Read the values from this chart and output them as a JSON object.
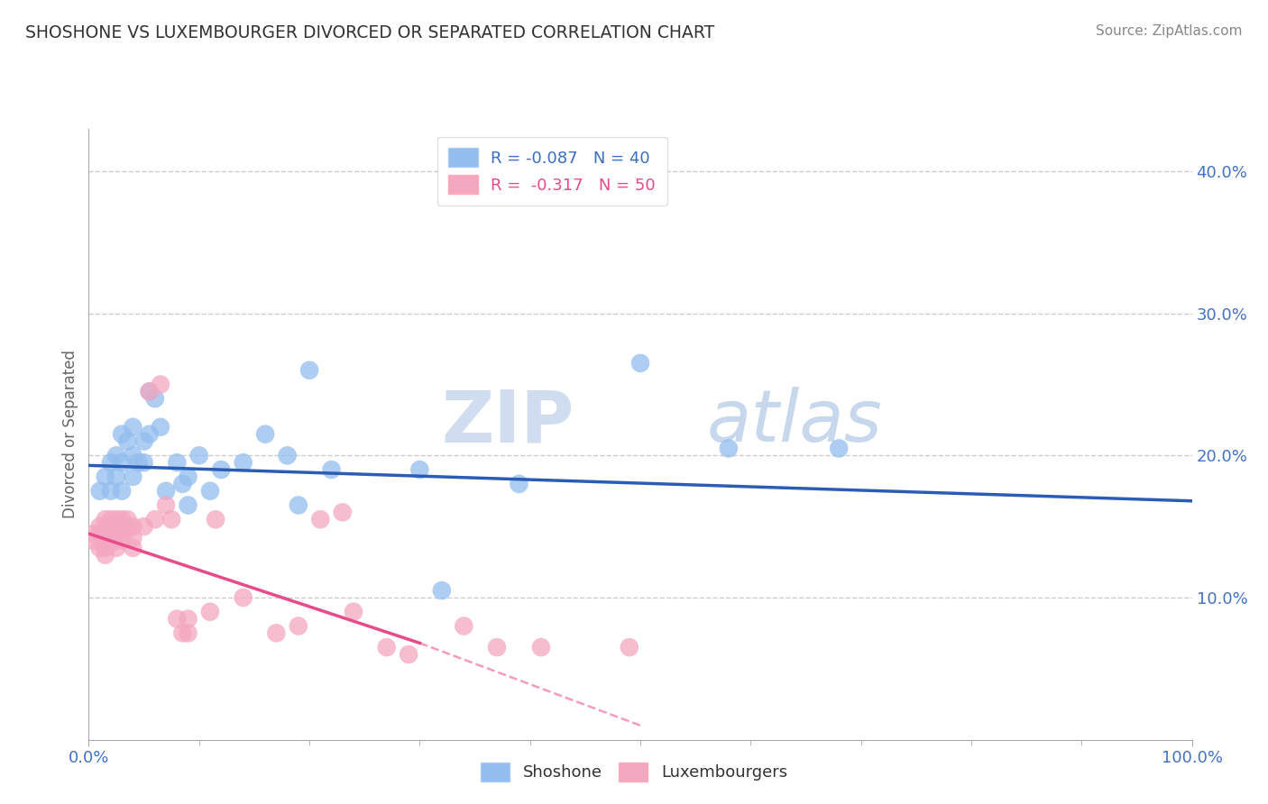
{
  "title": "SHOSHONE VS LUXEMBOURGER DIVORCED OR SEPARATED CORRELATION CHART",
  "source": "Source: ZipAtlas.com",
  "ylabel": "Divorced or Separated",
  "xlim": [
    0,
    1.0
  ],
  "ylim": [
    0,
    0.43
  ],
  "yticks": [
    0.1,
    0.2,
    0.3,
    0.4
  ],
  "ytick_labels": [
    "10.0%",
    "20.0%",
    "30.0%",
    "40.0%"
  ],
  "xticks": [
    0.0,
    1.0
  ],
  "xtick_labels": [
    "0.0%",
    "100.0%"
  ],
  "legend1_label": "R = -0.087   N = 40",
  "legend2_label": "R =  -0.317   N = 50",
  "legend1_color_text": "#3C6EBF",
  "legend2_color_text": "#E84B8A",
  "shoshone_color": "#92BDEE",
  "luxembourger_color": "#F4A7C0",
  "shoshone_line_color": "#2B5DB5",
  "luxembourger_line_color": "#E84B8A",
  "watermark_zip": "ZIP",
  "watermark_atlas": "atlas",
  "background_color": "#FFFFFF",
  "grid_color": "#CCCCCC",
  "shoshone_scatter": [
    [
      0.01,
      0.175
    ],
    [
      0.015,
      0.185
    ],
    [
      0.02,
      0.195
    ],
    [
      0.02,
      0.175
    ],
    [
      0.025,
      0.2
    ],
    [
      0.025,
      0.185
    ],
    [
      0.03,
      0.215
    ],
    [
      0.03,
      0.195
    ],
    [
      0.03,
      0.175
    ],
    [
      0.035,
      0.21
    ],
    [
      0.04,
      0.22
    ],
    [
      0.04,
      0.2
    ],
    [
      0.04,
      0.185
    ],
    [
      0.045,
      0.195
    ],
    [
      0.05,
      0.21
    ],
    [
      0.05,
      0.195
    ],
    [
      0.055,
      0.245
    ],
    [
      0.055,
      0.215
    ],
    [
      0.06,
      0.24
    ],
    [
      0.065,
      0.22
    ],
    [
      0.07,
      0.175
    ],
    [
      0.08,
      0.195
    ],
    [
      0.085,
      0.18
    ],
    [
      0.09,
      0.185
    ],
    [
      0.09,
      0.165
    ],
    [
      0.1,
      0.2
    ],
    [
      0.11,
      0.175
    ],
    [
      0.12,
      0.19
    ],
    [
      0.14,
      0.195
    ],
    [
      0.16,
      0.215
    ],
    [
      0.18,
      0.2
    ],
    [
      0.19,
      0.165
    ],
    [
      0.2,
      0.26
    ],
    [
      0.22,
      0.19
    ],
    [
      0.3,
      0.19
    ],
    [
      0.32,
      0.105
    ],
    [
      0.39,
      0.18
    ],
    [
      0.5,
      0.265
    ],
    [
      0.58,
      0.205
    ],
    [
      0.68,
      0.205
    ]
  ],
  "luxembourger_scatter": [
    [
      0.005,
      0.145
    ],
    [
      0.005,
      0.14
    ],
    [
      0.01,
      0.15
    ],
    [
      0.01,
      0.145
    ],
    [
      0.01,
      0.135
    ],
    [
      0.015,
      0.155
    ],
    [
      0.015,
      0.148
    ],
    [
      0.015,
      0.14
    ],
    [
      0.015,
      0.135
    ],
    [
      0.015,
      0.13
    ],
    [
      0.02,
      0.155
    ],
    [
      0.02,
      0.15
    ],
    [
      0.02,
      0.145
    ],
    [
      0.02,
      0.138
    ],
    [
      0.025,
      0.155
    ],
    [
      0.025,
      0.15
    ],
    [
      0.025,
      0.142
    ],
    [
      0.025,
      0.135
    ],
    [
      0.03,
      0.155
    ],
    [
      0.03,
      0.148
    ],
    [
      0.03,
      0.14
    ],
    [
      0.035,
      0.155
    ],
    [
      0.035,
      0.148
    ],
    [
      0.04,
      0.15
    ],
    [
      0.04,
      0.142
    ],
    [
      0.04,
      0.135
    ],
    [
      0.05,
      0.15
    ],
    [
      0.055,
      0.245
    ],
    [
      0.06,
      0.155
    ],
    [
      0.065,
      0.25
    ],
    [
      0.07,
      0.165
    ],
    [
      0.075,
      0.155
    ],
    [
      0.08,
      0.085
    ],
    [
      0.085,
      0.075
    ],
    [
      0.09,
      0.085
    ],
    [
      0.09,
      0.075
    ],
    [
      0.11,
      0.09
    ],
    [
      0.115,
      0.155
    ],
    [
      0.14,
      0.1
    ],
    [
      0.17,
      0.075
    ],
    [
      0.19,
      0.08
    ],
    [
      0.21,
      0.155
    ],
    [
      0.23,
      0.16
    ],
    [
      0.24,
      0.09
    ],
    [
      0.27,
      0.065
    ],
    [
      0.29,
      0.06
    ],
    [
      0.34,
      0.08
    ],
    [
      0.37,
      0.065
    ],
    [
      0.41,
      0.065
    ],
    [
      0.49,
      0.065
    ]
  ],
  "shoshone_trend": [
    0.0,
    1.0,
    0.193,
    0.168
  ],
  "luxembourger_trend_solid": [
    0.0,
    0.3,
    0.145,
    0.068
  ],
  "luxembourger_trend_dashed": [
    0.3,
    0.5,
    0.068,
    0.01
  ]
}
